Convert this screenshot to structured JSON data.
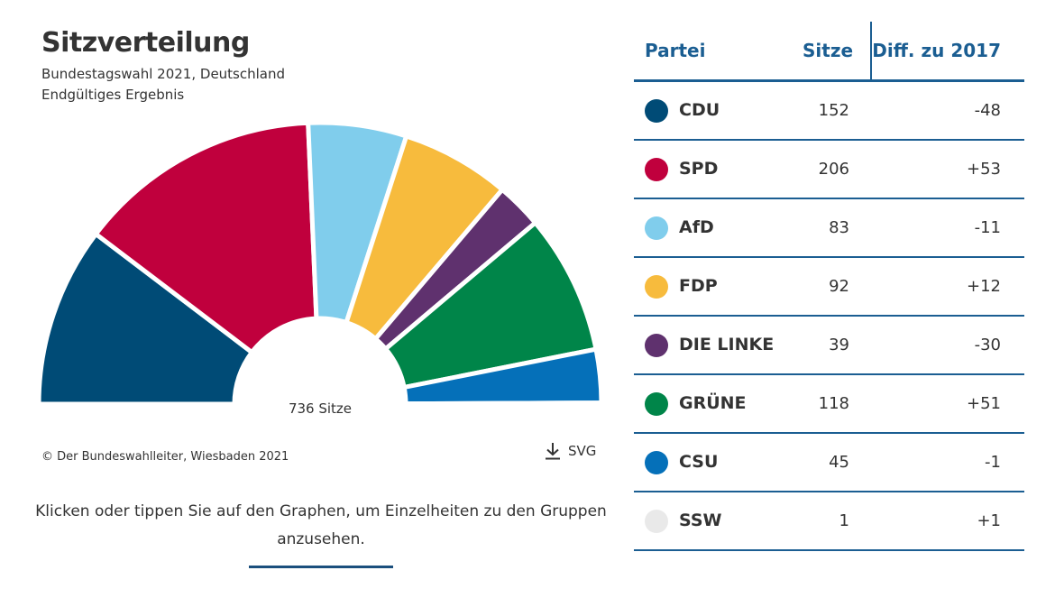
{
  "title": "Sitzverteilung",
  "subtitle1": "Bundestagswahl 2021, Deutschland",
  "subtitle2": "Endgültiges Ergebnis",
  "center_label": "736 Sitze",
  "copyright": "© Der Bundeswahlleiter, Wiesbaden 2021",
  "download_label": "SVG",
  "hint": "Klicken oder tippen Sie auf den Graphen, um Einzelheiten zu den Gruppen anzusehen.",
  "table": {
    "headers": {
      "party": "Partei",
      "seats": "Sitze",
      "diff": "Diff. zu 2017"
    },
    "rows": [
      {
        "party": "CDU",
        "seats": "152",
        "diff": "-48",
        "color": "#004B76"
      },
      {
        "party": "SPD",
        "seats": "206",
        "diff": "+53",
        "color": "#C0003D"
      },
      {
        "party": "AfD",
        "seats": "83",
        "diff": "-11",
        "color": "#80CDEC"
      },
      {
        "party": "FDP",
        "seats": "92",
        "diff": "+12",
        "color": "#F7BB3D"
      },
      {
        "party": "DIE LINKE",
        "seats": "39",
        "diff": "-30",
        "color": "#5F316E"
      },
      {
        "party": "GRÜNE",
        "seats": "118",
        "diff": "+51",
        "color": "#008549"
      },
      {
        "party": "CSU",
        "seats": "45",
        "diff": "-1",
        "color": "#0570B9"
      },
      {
        "party": "SSW",
        "seats": "1",
        "diff": "+1",
        "color": "#E9E9E9"
      }
    ]
  },
  "chart_data": {
    "type": "pie",
    "variant": "semicircle-parliament",
    "title": "Sitzverteilung",
    "subtitle": "Bundestagswahl 2021, Deutschland – Endgültiges Ergebnis",
    "total": 736,
    "categories": [
      "CDU",
      "SPD",
      "AfD",
      "FDP",
      "DIE LINKE",
      "GRÜNE",
      "CSU",
      "SSW"
    ],
    "values": [
      152,
      206,
      83,
      92,
      39,
      118,
      45,
      1
    ],
    "diff_to_2017": [
      -48,
      53,
      -11,
      12,
      -30,
      51,
      -1,
      1
    ],
    "colors": [
      "#004B76",
      "#C0003D",
      "#80CDEC",
      "#F7BB3D",
      "#5F316E",
      "#008549",
      "#0570B9",
      "#E9E9E9"
    ]
  }
}
